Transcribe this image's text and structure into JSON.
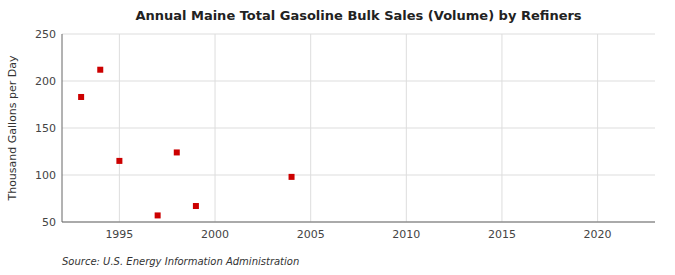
{
  "chart_data": {
    "type": "scatter",
    "title": "Annual Maine Total Gasoline Bulk Sales (Volume) by Refiners",
    "ylabel": "Thousand Gallons per Day",
    "source": "Source: U.S. Energy Information Administration",
    "x": [
      1993,
      1994,
      1995,
      1997,
      1998,
      1999,
      2004
    ],
    "values": [
      183,
      212,
      115,
      57,
      124,
      67,
      98
    ],
    "color": "#cc0000",
    "marker": "square",
    "xlim": [
      1992,
      2023
    ],
    "ylim": [
      50,
      250
    ],
    "xticks": [
      1995,
      2000,
      2005,
      2010,
      2015,
      2020
    ],
    "yticks": [
      50,
      100,
      150,
      200,
      250
    ],
    "grid": true
  }
}
